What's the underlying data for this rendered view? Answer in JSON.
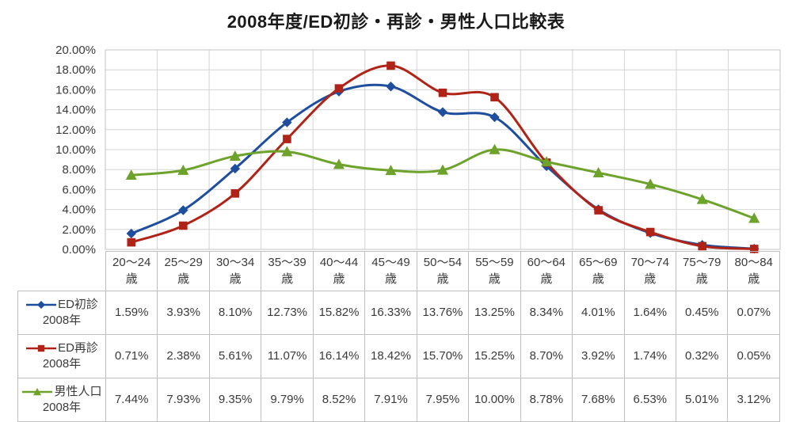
{
  "title": "2008年度/ED初診・再診・男性人口比較表",
  "colors": {
    "series_blue": "#1f4e9e",
    "series_red": "#b02418",
    "series_green": "#6da22b",
    "gridline": "#d4d4d4",
    "plot_border": "#c3c3c3",
    "table_border": "#bfbfbf",
    "text": "#3a3a3a"
  },
  "chart_data": {
    "type": "line",
    "title": "2008年度/ED初診・再診・男性人口比較表",
    "smooth": true,
    "grid": true,
    "legend_position": "table-left",
    "ylim": [
      0,
      20
    ],
    "ytick_step": 2,
    "ytick_labels": [
      "20.00%",
      "18.00%",
      "16.00%",
      "14.00%",
      "12.00%",
      "10.00%",
      "8.00%",
      "6.00%",
      "4.00%",
      "2.00%",
      "0.00%"
    ],
    "value_format": "0.00%",
    "categories": [
      "20〜24歳",
      "25〜29歳",
      "30〜34歳",
      "35〜39歳",
      "40〜44歳",
      "45〜49歳",
      "50〜54歳",
      "55〜59歳",
      "60〜64歳",
      "65〜69歳",
      "70〜74歳",
      "75〜79歳",
      "80〜84歳"
    ],
    "series": [
      {
        "name": "ED初診 2008年",
        "label_top": "ED初診",
        "label_bottom": "2008年",
        "color": "#1f4e9e",
        "marker": "diamond",
        "values": [
          1.59,
          3.93,
          8.1,
          12.73,
          15.82,
          16.33,
          13.76,
          13.25,
          8.34,
          4.01,
          1.64,
          0.45,
          0.07
        ]
      },
      {
        "name": "ED再診 2008年",
        "label_top": "ED再診",
        "label_bottom": "2008年",
        "color": "#b02418",
        "marker": "square",
        "values": [
          0.71,
          2.38,
          5.61,
          11.07,
          16.14,
          18.42,
          15.7,
          15.25,
          8.7,
          3.92,
          1.74,
          0.32,
          0.05
        ]
      },
      {
        "name": "男性人口 2008年",
        "label_top": "男性人口",
        "label_bottom": "2008年",
        "color": "#6da22b",
        "marker": "triangle",
        "values": [
          7.44,
          7.93,
          9.35,
          9.79,
          8.52,
          7.91,
          7.95,
          10.0,
          8.78,
          7.68,
          6.53,
          5.01,
          3.12
        ]
      }
    ]
  }
}
